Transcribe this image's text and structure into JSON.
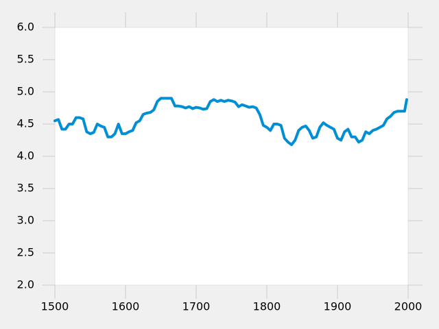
{
  "chart_data": {
    "type": "line",
    "x": [
      1500,
      1505,
      1510,
      1515,
      1520,
      1525,
      1530,
      1535,
      1540,
      1545,
      1550,
      1555,
      1560,
      1565,
      1570,
      1575,
      1580,
      1585,
      1590,
      1595,
      1600,
      1605,
      1610,
      1615,
      1620,
      1625,
      1630,
      1635,
      1640,
      1645,
      1650,
      1655,
      1660,
      1665,
      1670,
      1675,
      1680,
      1685,
      1690,
      1695,
      1700,
      1705,
      1710,
      1715,
      1720,
      1725,
      1730,
      1735,
      1740,
      1745,
      1750,
      1755,
      1760,
      1765,
      1770,
      1775,
      1780,
      1785,
      1790,
      1795,
      1800,
      1805,
      1810,
      1815,
      1820,
      1825,
      1830,
      1835,
      1840,
      1845,
      1850,
      1855,
      1860,
      1865,
      1870,
      1875,
      1880,
      1885,
      1890,
      1895,
      1900,
      1905,
      1910,
      1915,
      1920,
      1925,
      1930,
      1935,
      1940,
      1945,
      1950,
      1955,
      1960,
      1965,
      1970,
      1975,
      1980,
      1985,
      1990,
      1995,
      1998
    ],
    "series": [
      {
        "color": "#008fd5",
        "values": [
          4.55,
          4.57,
          4.42,
          4.42,
          4.5,
          4.5,
          4.6,
          4.6,
          4.58,
          4.38,
          4.35,
          4.37,
          4.5,
          4.47,
          4.45,
          4.3,
          4.3,
          4.35,
          4.5,
          4.35,
          4.35,
          4.38,
          4.4,
          4.52,
          4.55,
          4.65,
          4.67,
          4.68,
          4.72,
          4.85,
          4.9,
          4.9,
          4.9,
          4.9,
          4.78,
          4.78,
          4.77,
          4.75,
          4.77,
          4.74,
          4.76,
          4.75,
          4.73,
          4.74,
          4.85,
          4.88,
          4.85,
          4.87,
          4.85,
          4.87,
          4.86,
          4.84,
          4.77,
          4.8,
          4.78,
          4.76,
          4.77,
          4.75,
          4.65,
          4.48,
          4.45,
          4.4,
          4.5,
          4.5,
          4.48,
          4.28,
          4.22,
          4.18,
          4.25,
          4.4,
          4.45,
          4.47,
          4.4,
          4.28,
          4.3,
          4.45,
          4.52,
          4.48,
          4.45,
          4.42,
          4.28,
          4.25,
          4.38,
          4.42,
          4.3,
          4.3,
          4.22,
          4.25,
          4.38,
          4.35,
          4.4,
          4.42,
          4.45,
          4.48,
          4.58,
          4.62,
          4.68,
          4.7,
          4.7,
          4.7,
          4.88
        ]
      }
    ],
    "xlim": [
      1500,
      2000
    ],
    "xticks": [
      1500,
      1600,
      1700,
      1800,
      1900,
      2000
    ],
    "ylim": [
      2,
      6
    ],
    "yticks": [
      {
        "value": 2,
        "label": "2.0"
      },
      2.5,
      {
        "value": 3,
        "label": "3.0"
      },
      3.5,
      {
        "value": 4,
        "label": "4.0"
      },
      4.5,
      {
        "value": 5,
        "label": "5.0"
      },
      5.5,
      {
        "value": 6,
        "label": "6.0"
      }
    ]
  }
}
